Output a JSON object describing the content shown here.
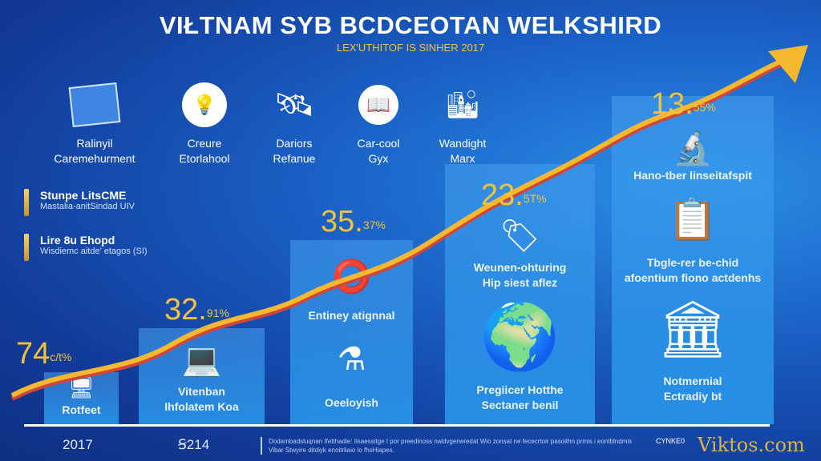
{
  "header": {
    "title": "VIŁTNAM SYB BCDCEOTAN WELKSHIRD",
    "subtitle": "LEX'UTHITOF IS SINHER 2017"
  },
  "features": [
    {
      "icon": "documents-icon",
      "line1": "Ralinyil",
      "line2": "Caremehurment"
    },
    {
      "icon": "lightbulb-icon",
      "line1": "Creure",
      "line2": "Etorlahool"
    },
    {
      "icon": "satellite-icon",
      "line1": "Dariors",
      "line2": "Refanue"
    },
    {
      "icon": "book-icon",
      "line1": "Car-cool",
      "line2": "Gyx"
    },
    {
      "icon": "city-icon",
      "line1": "Wandight",
      "line2": "Marx"
    }
  ],
  "legend": [
    {
      "title": "Stunpe LitsCME",
      "sub": "Mastalia-anitSindad UIV"
    },
    {
      "title": "Lire 8u Ehopd",
      "sub": "Wisdiemc aitde' etagos (SI)"
    }
  ],
  "columns": [
    {
      "pct_main": "74",
      "pct_sup": "c/t%",
      "label1": "Rotfeet",
      "label2": "",
      "icon": "monitor-icon"
    },
    {
      "pct_main": "32.",
      "pct_sup": "91%",
      "label1": "Vitenban",
      "label2": "Ihfolatem Koa",
      "icon": "money-computer-icon"
    },
    {
      "pct_main": "35.",
      "pct_sup": "37%",
      "label1": "Entiney atignnal",
      "label2": "Oeeloyish",
      "icon": "lab-equipment-icon"
    },
    {
      "pct_main": "23.",
      "pct_sup": "5T%",
      "label1": "Weunen-ohturing",
      "label2": "Hip siest aflez",
      "label3": "Pregiicer Hotthe",
      "label4": "Sectaner benil",
      "icon": "globe-icon"
    },
    {
      "pct_main": "13.",
      "pct_sup": "55%",
      "label1": "Hano-tber linseitafspit",
      "label2": "Tbgle-rer be-chid",
      "label3": "afoentium fiono actdenhs",
      "label4": "Notmernial",
      "label5": "Ectradiy bt",
      "icon": "building-icon"
    }
  ],
  "years": [
    "2017",
    "Ꞩ214"
  ],
  "footnote": "Dodambadsluqnan Ifetthadie: Iisaessitge I por preedinoss naldvgeneredat Wio zonsat ne fececrtoir pasoithn prmis i eontblndmis Vibar Stwyire ditdiyk enoitrliaio lo fhsHiapes.",
  "brand": {
    "logo": "CYNKE0",
    "site": "Viktos.com"
  },
  "colors": {
    "accent": "#f2c23a",
    "arrow": "#f5b82e",
    "arrow_shadow": "#d2453a",
    "background": "#1a5fc4"
  }
}
